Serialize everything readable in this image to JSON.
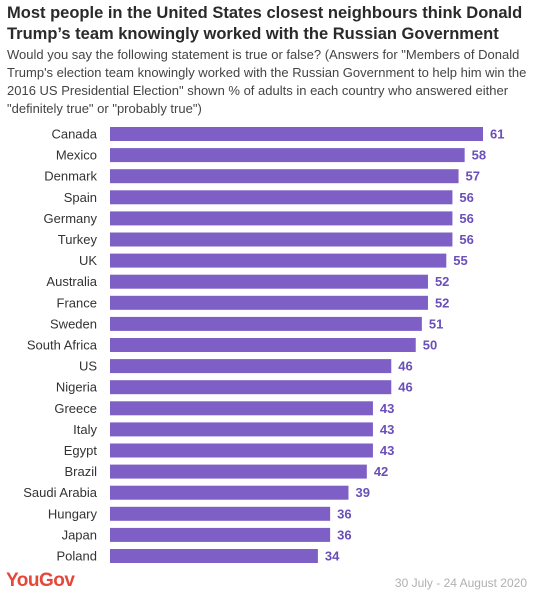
{
  "header": {
    "title": "Most people in the United States closest neighbours think Donald Trump’s team knowingly worked with the Russian Government",
    "subtitle": "Would you say the following statement is true or false? (Answers for \"Members of Donald Trump's election team knowingly worked with the Russian Government to help him win the 2016 US Presidential Election\" shown % of adults in each country who answered either \"definitely true\" or \"probably true\")"
  },
  "footer": {
    "brand": "YouGov",
    "date": "30 July - 24 August 2020"
  },
  "colors": {
    "bar": "#7e5fc6",
    "value_label": "#6a4fb8",
    "brand": "#e5473a"
  },
  "chart_data": {
    "type": "bar",
    "orientation": "horizontal",
    "categories": [
      "Canada",
      "Mexico",
      "Denmark",
      "Spain",
      "Germany",
      "Turkey",
      "UK",
      "Australia",
      "France",
      "Sweden",
      "South Africa",
      "US",
      "Nigeria",
      "Greece",
      "Italy",
      "Egypt",
      "Brazil",
      "Saudi Arabia",
      "Hungary",
      "Japan",
      "Poland"
    ],
    "values": [
      61,
      58,
      57,
      56,
      56,
      56,
      55,
      52,
      52,
      51,
      50,
      46,
      46,
      43,
      43,
      43,
      42,
      39,
      36,
      36,
      34
    ],
    "title": "",
    "xlabel": "",
    "ylabel": "",
    "xlim": [
      0,
      61
    ],
    "grid": false,
    "legend": "none"
  }
}
